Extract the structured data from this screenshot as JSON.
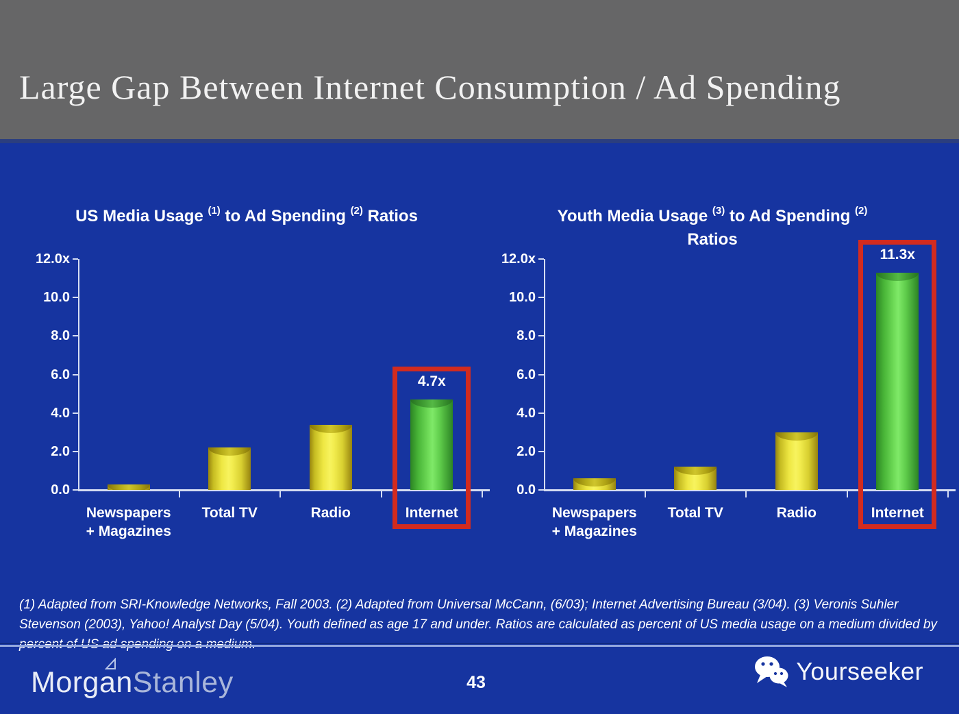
{
  "slide": {
    "title": "Large Gap Between Internet Consumption / Ad Spending",
    "footnote": "(1) Adapted from SRI-Knowledge Networks, Fall 2003.  (2) Adapted from Universal McCann, (6/03); Internet Advertising Bureau (3/04). (3) Veronis Suhler Stevenson (2003), Yahoo! Analyst Day (5/04).  Youth defined as age 17 and under.  Ratios are calculated as percent of US media usage on a medium divided by percent of US ad spending on a medium.",
    "page_number": "43",
    "brands": {
      "morgan": "Morgan",
      "stanley": "Stanley",
      "yourseeker": "Yourseeker"
    }
  },
  "colors": {
    "header_bg": "#666667",
    "body_bg": "#1634a0",
    "header_divider": "#2b3e7f",
    "axis_line": "#d6def2",
    "bar_yellow": "#eee743",
    "bar_green": "#52c93f",
    "highlight_red": "#d22b1f",
    "footer_divider": "#93a7de",
    "text": "#ffffff"
  },
  "chart_data": [
    {
      "type": "bar",
      "title_lines": [
        [
          {
            "text": "US Media Usage "
          },
          {
            "text": "(1)",
            "sup": true
          },
          {
            "text": " to Ad Spending "
          },
          {
            "text": "(2)",
            "sup": true
          },
          {
            "text": " Ratios"
          }
        ]
      ],
      "categories": [
        [
          "Newspapers",
          "+ Magazines"
        ],
        [
          "Total TV"
        ],
        [
          "Radio"
        ],
        [
          "Internet"
        ]
      ],
      "values": [
        0.3,
        2.2,
        3.4,
        4.7
      ],
      "bar_colors": [
        "yellow",
        "yellow",
        "yellow",
        "green"
      ],
      "highlight_index": 3,
      "highlight_label": "4.7x",
      "ylim": [
        0,
        12
      ],
      "yticks": [
        "12.0x",
        "10.0",
        "8.0",
        "6.0",
        "4.0",
        "2.0",
        "0.0"
      ],
      "xlabel": "",
      "ylabel": "",
      "grid": false,
      "legend": null
    },
    {
      "type": "bar",
      "title_lines": [
        [
          {
            "text": "Youth Media Usage "
          },
          {
            "text": "(3)",
            "sup": true
          },
          {
            "text": " to Ad Spending "
          },
          {
            "text": "(2)",
            "sup": true
          }
        ],
        [
          {
            "text": "Ratios"
          }
        ]
      ],
      "categories": [
        [
          "Newspapers",
          "+ Magazines"
        ],
        [
          "Total TV"
        ],
        [
          "Radio"
        ],
        [
          "Internet"
        ]
      ],
      "values": [
        0.6,
        1.2,
        3.0,
        11.3
      ],
      "bar_colors": [
        "yellow",
        "yellow",
        "yellow",
        "green"
      ],
      "highlight_index": 3,
      "highlight_label": "11.3x",
      "ylim": [
        0,
        12
      ],
      "yticks": [
        "12.0x",
        "10.0",
        "8.0",
        "6.0",
        "4.0",
        "2.0",
        "0.0"
      ],
      "xlabel": "",
      "ylabel": "",
      "grid": false,
      "legend": null
    }
  ]
}
